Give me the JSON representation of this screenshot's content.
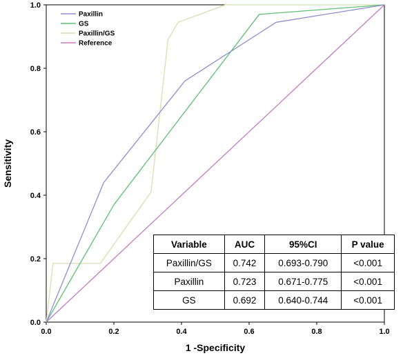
{
  "chart_data": {
    "type": "line",
    "title": "",
    "xlabel": "1 -Specificity",
    "ylabel": "Sensitivity",
    "xlim": [
      0,
      1
    ],
    "ylim": [
      0,
      1
    ],
    "x_ticks": [
      "0.0",
      "0.2",
      "0.4",
      "0.6",
      "0.8",
      "1.0"
    ],
    "y_ticks": [
      "0.0",
      "0.2",
      "0.4",
      "0.6",
      "0.8",
      "1.0"
    ],
    "grid": false,
    "legend_position": "top-left",
    "series": [
      {
        "name": "Paxillin",
        "color": "#8b8fd0",
        "points": [
          [
            0,
            0
          ],
          [
            0.17,
            0.44
          ],
          [
            0.41,
            0.76
          ],
          [
            0.68,
            0.945
          ],
          [
            1.0,
            1.0
          ]
        ]
      },
      {
        "name": "GS",
        "color": "#5fbf72",
        "points": [
          [
            0,
            0
          ],
          [
            0.2,
            0.37
          ],
          [
            0.63,
            0.97
          ],
          [
            1.0,
            1.0
          ]
        ]
      },
      {
        "name": "Paxillin/GS",
        "color": "#d4e0b0",
        "points": [
          [
            0,
            0
          ],
          [
            0.02,
            0.185
          ],
          [
            0.16,
            0.185
          ],
          [
            0.31,
            0.41
          ],
          [
            0.36,
            0.89
          ],
          [
            0.39,
            0.945
          ],
          [
            0.53,
            1.0
          ],
          [
            1.0,
            1.0
          ]
        ]
      },
      {
        "name": "Reference",
        "color": "#c07cc4",
        "points": [
          [
            0,
            0
          ],
          [
            1.0,
            1.0
          ]
        ]
      }
    ]
  },
  "stats_table": {
    "headers": [
      "Variable",
      "AUC",
      "95%CI",
      "P value"
    ],
    "rows": [
      [
        "Paxillin/GS",
        "0.742",
        "0.693-0.790",
        "<0.001"
      ],
      [
        "Paxillin",
        "0.723",
        "0.671-0.775",
        "<0.001"
      ],
      [
        "GS",
        "0.692",
        "0.640-0.744",
        "<0.001"
      ]
    ]
  }
}
